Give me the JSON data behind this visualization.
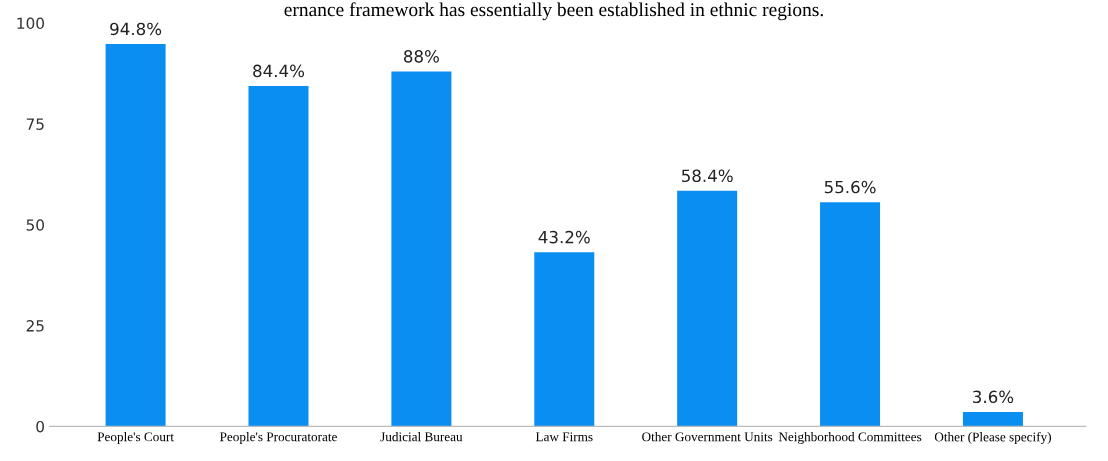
{
  "chart_data": {
    "type": "bar",
    "categories": [
      "People's Court",
      "People's Procuratorate",
      "Judicial Bureau",
      "Law Firms",
      "Other Government Units",
      "Neighborhood Committees",
      "Other (Please specify)"
    ],
    "values": [
      94.8,
      84.4,
      88,
      43.2,
      58.4,
      55.6,
      3.6
    ],
    "value_labels": [
      "94.8%",
      "84.4%",
      "88%",
      "43.2%",
      "58.4%",
      "55.6%",
      "3.6%"
    ],
    "color": "#0a8ef2",
    "ylim": [
      0,
      100
    ],
    "yticks": [
      0,
      25,
      50,
      75,
      100
    ],
    "grid": false,
    "annotations": [
      "ernance framework has essentially been established in ethnic regions."
    ]
  }
}
